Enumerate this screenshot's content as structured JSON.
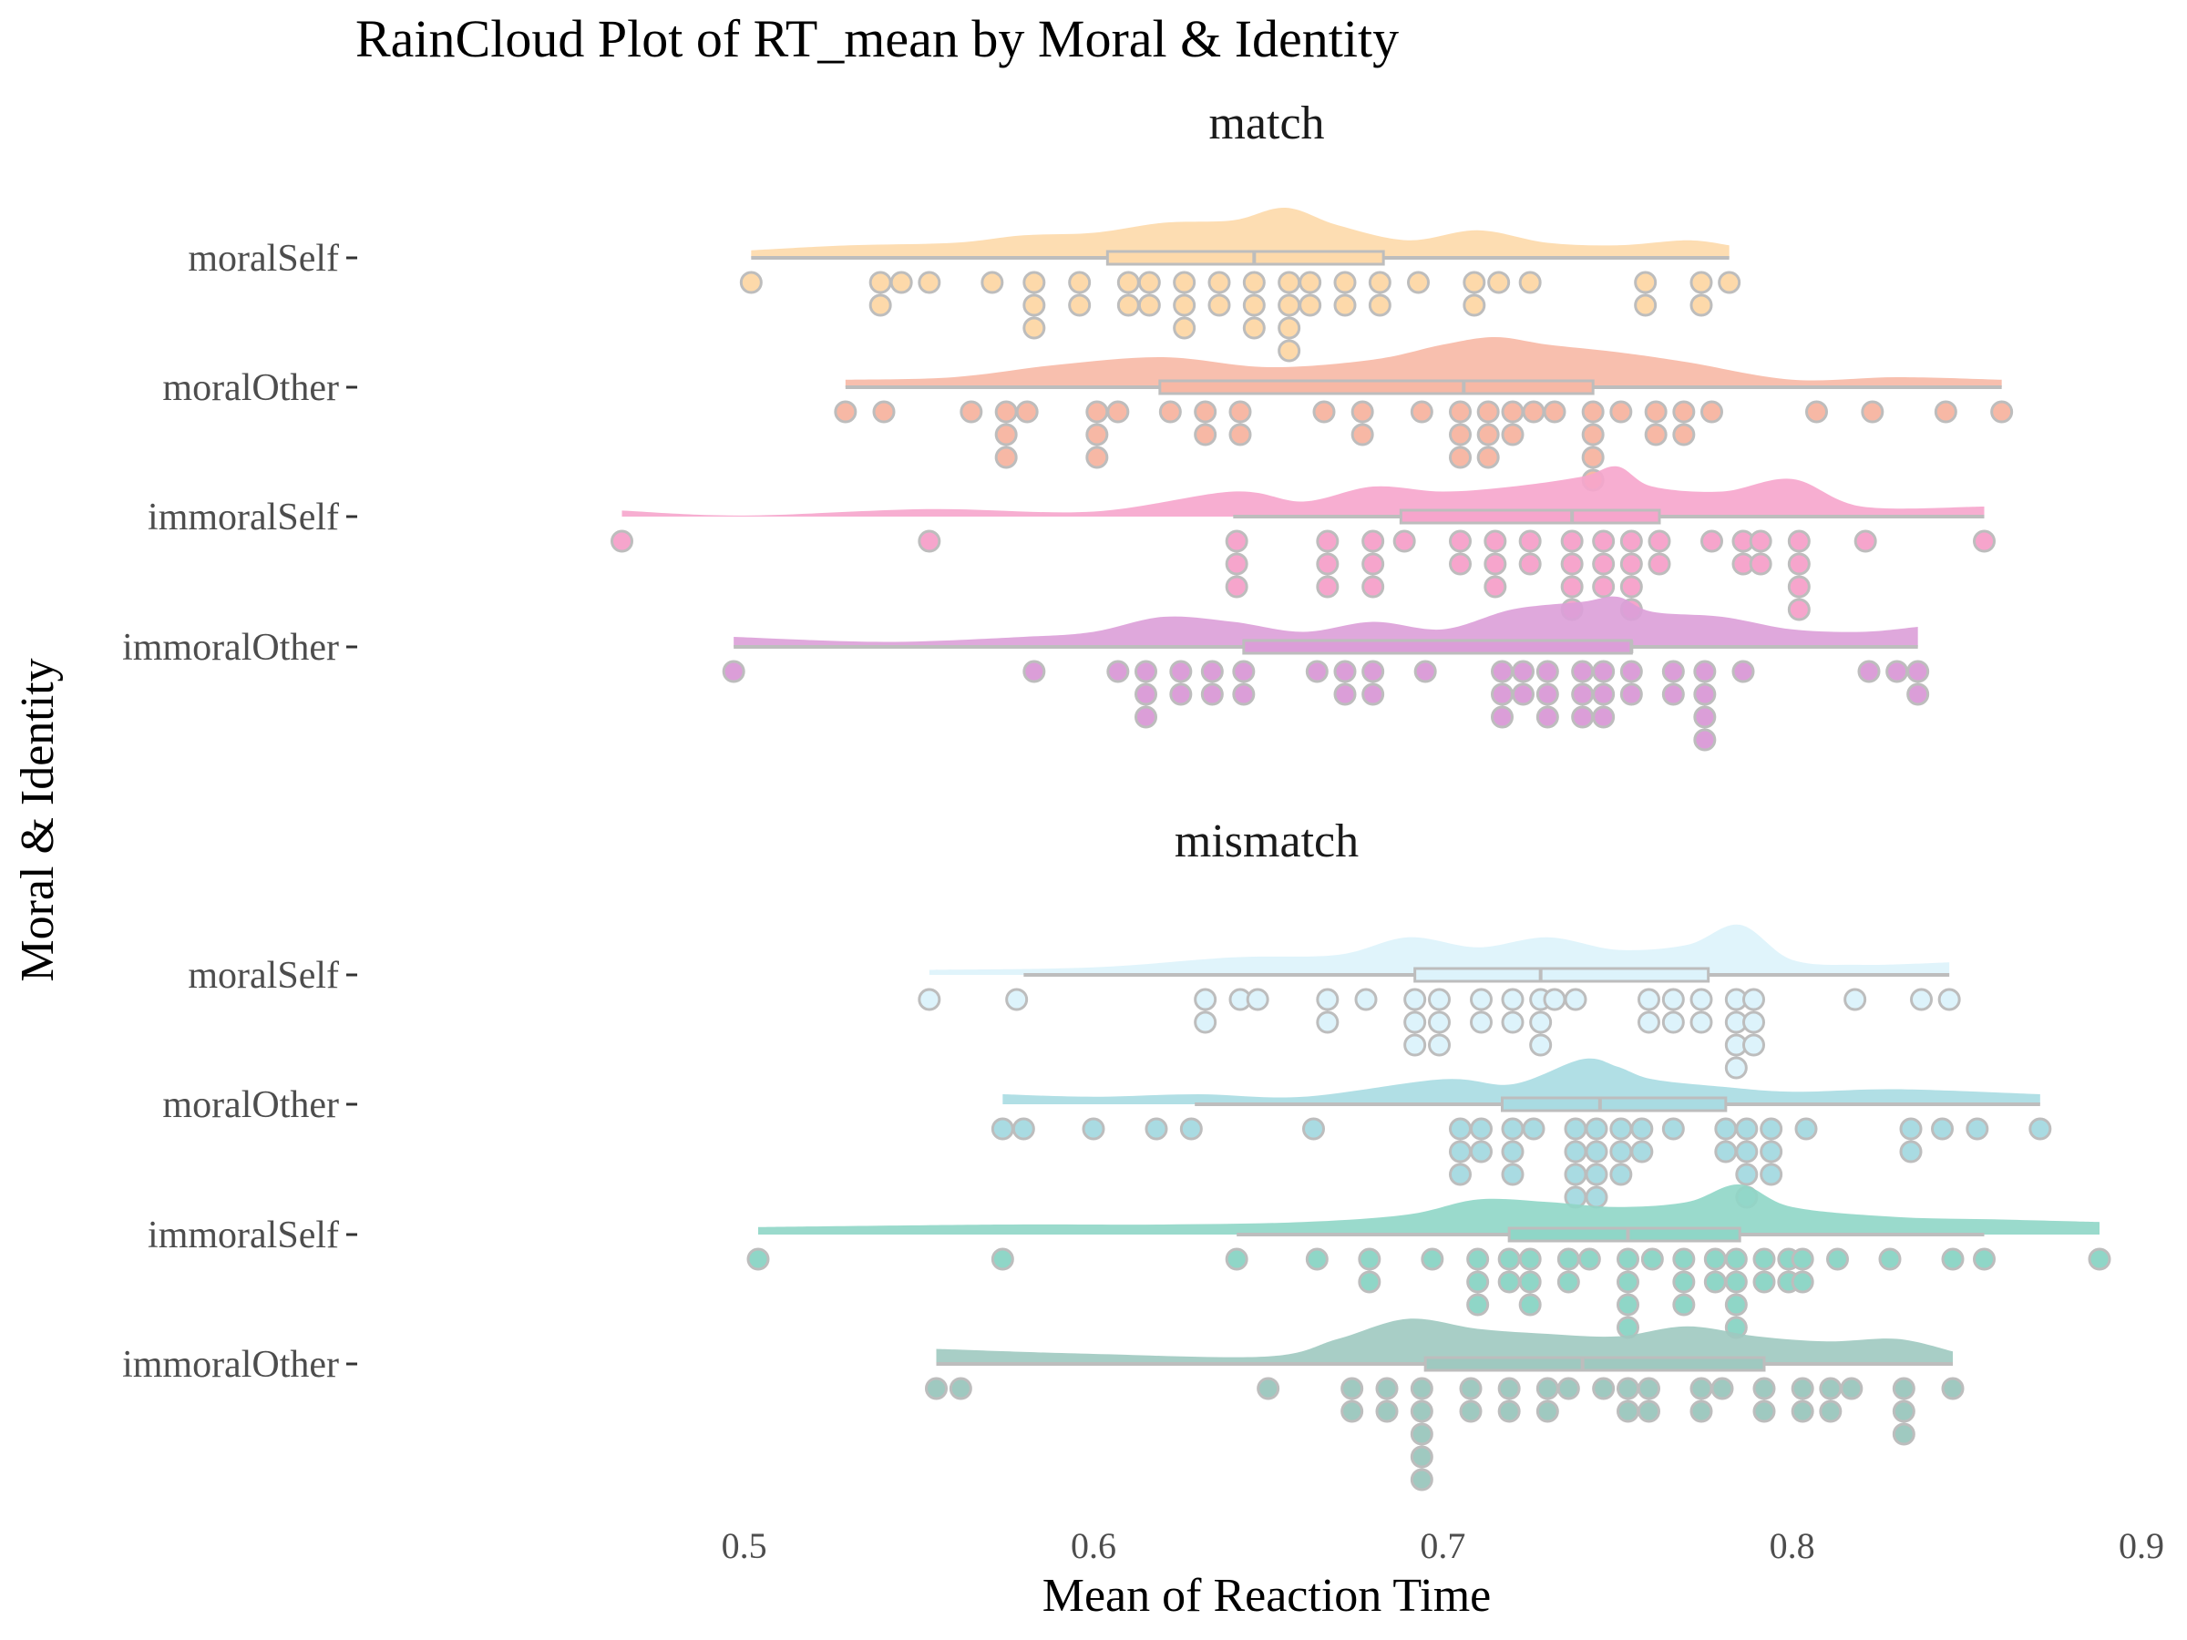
{
  "chart_data": {
    "type": "raincloud",
    "title": "RainCloud Plot of RT_mean by Moral & Identity",
    "xlabel": "Mean of Reaction Time",
    "ylabel": "Moral & Identity",
    "xlim": [
      0.45,
      0.9
    ],
    "x_ticks": [
      "0.5",
      "0.6",
      "0.7",
      "0.8",
      "0.9"
    ],
    "x_tick_values": [
      0.5,
      0.6,
      0.7,
      0.8,
      0.9
    ],
    "grid": false,
    "legend": "none",
    "facets": [
      {
        "name": "match",
        "groups": [
          {
            "name": "moralSelf",
            "color": "#FDD9AA",
            "box": {
              "min": 0.502,
              "q1": 0.604,
              "median": 0.646,
              "q3": 0.683,
              "max": 0.782
            },
            "values": [
              0.502,
              0.539,
              0.539,
              0.545,
              0.553,
              0.571,
              0.583,
              0.583,
              0.583,
              0.596,
              0.596,
              0.61,
              0.61,
              0.616,
              0.616,
              0.626,
              0.626,
              0.626,
              0.636,
              0.636,
              0.646,
              0.646,
              0.646,
              0.656,
              0.656,
              0.656,
              0.656,
              0.662,
              0.662,
              0.672,
              0.672,
              0.682,
              0.682,
              0.693,
              0.709,
              0.709,
              0.716,
              0.725,
              0.758,
              0.758,
              0.774,
              0.774,
              0.782
            ],
            "density": [
              [
                0.502,
                0.15
              ],
              [
                0.53,
                0.25
              ],
              [
                0.56,
                0.3
              ],
              [
                0.58,
                0.45
              ],
              [
                0.6,
                0.5
              ],
              [
                0.62,
                0.7
              ],
              [
                0.64,
                0.75
              ],
              [
                0.655,
                1.0
              ],
              [
                0.67,
                0.65
              ],
              [
                0.69,
                0.35
              ],
              [
                0.71,
                0.55
              ],
              [
                0.73,
                0.3
              ],
              [
                0.75,
                0.25
              ],
              [
                0.77,
                0.35
              ],
              [
                0.782,
                0.25
              ]
            ]
          },
          {
            "name": "moralOther",
            "color": "#F7B8A5",
            "box": {
              "min": 0.529,
              "q1": 0.619,
              "median": 0.706,
              "q3": 0.743,
              "max": 0.86
            },
            "values": [
              0.529,
              0.54,
              0.565,
              0.575,
              0.575,
              0.575,
              0.581,
              0.601,
              0.601,
              0.601,
              0.607,
              0.622,
              0.632,
              0.632,
              0.642,
              0.642,
              0.666,
              0.677,
              0.677,
              0.694,
              0.705,
              0.705,
              0.705,
              0.713,
              0.713,
              0.713,
              0.72,
              0.72,
              0.726,
              0.732,
              0.743,
              0.743,
              0.743,
              0.743,
              0.751,
              0.761,
              0.761,
              0.769,
              0.769,
              0.777,
              0.807,
              0.823,
              0.844,
              0.86
            ],
            "density": [
              [
                0.529,
                0.15
              ],
              [
                0.56,
                0.2
              ],
              [
                0.59,
                0.45
              ],
              [
                0.62,
                0.6
              ],
              [
                0.65,
                0.4
              ],
              [
                0.68,
                0.55
              ],
              [
                0.7,
                0.85
              ],
              [
                0.715,
                1.0
              ],
              [
                0.73,
                0.85
              ],
              [
                0.75,
                0.7
              ],
              [
                0.77,
                0.5
              ],
              [
                0.8,
                0.15
              ],
              [
                0.83,
                0.2
              ],
              [
                0.86,
                0.15
              ]
            ]
          },
          {
            "name": "immoralSelf",
            "color": "#F6A5CC",
            "box": {
              "min": 0.64,
              "q1": 0.688,
              "median": 0.737,
              "q3": 0.762,
              "max": 0.855
            },
            "values": [
              0.465,
              0.553,
              0.641,
              0.641,
              0.641,
              0.667,
              0.667,
              0.667,
              0.68,
              0.68,
              0.68,
              0.689,
              0.705,
              0.705,
              0.715,
              0.715,
              0.715,
              0.725,
              0.725,
              0.737,
              0.737,
              0.737,
              0.737,
              0.746,
              0.746,
              0.746,
              0.754,
              0.754,
              0.754,
              0.754,
              0.762,
              0.762,
              0.777,
              0.786,
              0.786,
              0.791,
              0.791,
              0.802,
              0.802,
              0.802,
              0.802,
              0.821,
              0.855
            ],
            "density": [
              [
                0.465,
                0.12
              ],
              [
                0.5,
                0.02
              ],
              [
                0.553,
                0.15
              ],
              [
                0.6,
                0.1
              ],
              [
                0.64,
                0.5
              ],
              [
                0.66,
                0.3
              ],
              [
                0.68,
                0.6
              ],
              [
                0.7,
                0.5
              ],
              [
                0.72,
                0.6
              ],
              [
                0.74,
                0.8
              ],
              [
                0.75,
                1.0
              ],
              [
                0.76,
                0.6
              ],
              [
                0.78,
                0.5
              ],
              [
                0.8,
                0.75
              ],
              [
                0.82,
                0.2
              ],
              [
                0.855,
                0.2
              ]
            ]
          },
          {
            "name": "immoralOther",
            "color": "#DB9ED8",
            "box": {
              "min": 0.497,
              "q1": 0.643,
              "median": 0.754,
              "q3": 0.754,
              "max": 0.836
            },
            "values": [
              0.497,
              0.583,
              0.607,
              0.615,
              0.615,
              0.615,
              0.625,
              0.625,
              0.634,
              0.634,
              0.643,
              0.643,
              0.664,
              0.672,
              0.672,
              0.68,
              0.68,
              0.695,
              0.717,
              0.717,
              0.717,
              0.723,
              0.723,
              0.73,
              0.73,
              0.73,
              0.74,
              0.74,
              0.74,
              0.746,
              0.746,
              0.746,
              0.754,
              0.754,
              0.766,
              0.766,
              0.775,
              0.775,
              0.775,
              0.775,
              0.786,
              0.822,
              0.83,
              0.836,
              0.836
            ],
            "density": [
              [
                0.497,
                0.2
              ],
              [
                0.54,
                0.1
              ],
              [
                0.58,
                0.2
              ],
              [
                0.6,
                0.3
              ],
              [
                0.62,
                0.6
              ],
              [
                0.64,
                0.5
              ],
              [
                0.66,
                0.3
              ],
              [
                0.68,
                0.5
              ],
              [
                0.7,
                0.35
              ],
              [
                0.72,
                0.75
              ],
              [
                0.74,
                0.9
              ],
              [
                0.75,
                1.0
              ],
              [
                0.76,
                0.7
              ],
              [
                0.78,
                0.6
              ],
              [
                0.8,
                0.35
              ],
              [
                0.82,
                0.3
              ],
              [
                0.836,
                0.4
              ]
            ]
          }
        ]
      },
      {
        "name": "mismatch",
        "groups": [
          {
            "name": "moralSelf",
            "color": "#DDF3FB",
            "box": {
              "min": 0.58,
              "q1": 0.692,
              "median": 0.728,
              "q3": 0.776,
              "max": 0.845
            },
            "values": [
              0.553,
              0.578,
              0.632,
              0.632,
              0.642,
              0.647,
              0.667,
              0.667,
              0.678,
              0.692,
              0.692,
              0.692,
              0.699,
              0.699,
              0.699,
              0.711,
              0.711,
              0.72,
              0.72,
              0.728,
              0.728,
              0.728,
              0.732,
              0.738,
              0.759,
              0.759,
              0.766,
              0.766,
              0.774,
              0.774,
              0.784,
              0.784,
              0.784,
              0.784,
              0.789,
              0.789,
              0.789,
              0.818,
              0.837,
              0.845
            ],
            "density": [
              [
                0.553,
                0.1
              ],
              [
                0.6,
                0.15
              ],
              [
                0.64,
                0.35
              ],
              [
                0.67,
                0.4
              ],
              [
                0.69,
                0.75
              ],
              [
                0.71,
                0.55
              ],
              [
                0.73,
                0.75
              ],
              [
                0.75,
                0.5
              ],
              [
                0.77,
                0.6
              ],
              [
                0.785,
                1.0
              ],
              [
                0.8,
                0.3
              ],
              [
                0.82,
                0.2
              ],
              [
                0.845,
                0.25
              ]
            ]
          },
          {
            "name": "moralOther",
            "color": "#A9DBE2",
            "box": {
              "min": 0.629,
              "q1": 0.717,
              "median": 0.745,
              "q3": 0.781,
              "max": 0.871
            },
            "values": [
              0.574,
              0.58,
              0.6,
              0.618,
              0.628,
              0.663,
              0.705,
              0.705,
              0.705,
              0.711,
              0.711,
              0.72,
              0.72,
              0.72,
              0.726,
              0.738,
              0.738,
              0.738,
              0.738,
              0.744,
              0.744,
              0.744,
              0.744,
              0.751,
              0.751,
              0.751,
              0.757,
              0.757,
              0.766,
              0.781,
              0.781,
              0.787,
              0.787,
              0.787,
              0.787,
              0.794,
              0.794,
              0.794,
              0.804,
              0.834,
              0.834,
              0.843,
              0.853,
              0.871
            ],
            "density": [
              [
                0.574,
                0.2
              ],
              [
                0.6,
                0.15
              ],
              [
                0.63,
                0.2
              ],
              [
                0.66,
                0.15
              ],
              [
                0.7,
                0.5
              ],
              [
                0.72,
                0.4
              ],
              [
                0.74,
                0.9
              ],
              [
                0.75,
                0.75
              ],
              [
                0.76,
                0.5
              ],
              [
                0.78,
                0.35
              ],
              [
                0.8,
                0.25
              ],
              [
                0.83,
                0.3
              ],
              [
                0.871,
                0.2
              ]
            ]
          },
          {
            "name": "immoralSelf",
            "color": "#8FD6C7",
            "box": {
              "min": 0.641,
              "q1": 0.719,
              "median": 0.753,
              "q3": 0.785,
              "max": 0.855
            },
            "values": [
              0.504,
              0.574,
              0.641,
              0.664,
              0.679,
              0.679,
              0.697,
              0.71,
              0.71,
              0.71,
              0.719,
              0.719,
              0.725,
              0.725,
              0.725,
              0.736,
              0.736,
              0.742,
              0.753,
              0.753,
              0.753,
              0.753,
              0.76,
              0.769,
              0.769,
              0.769,
              0.778,
              0.778,
              0.784,
              0.784,
              0.784,
              0.784,
              0.792,
              0.792,
              0.799,
              0.799,
              0.803,
              0.803,
              0.813,
              0.828,
              0.846,
              0.855,
              0.888
            ],
            "density": [
              [
                0.504,
                0.15
              ],
              [
                0.574,
                0.2
              ],
              [
                0.62,
                0.2
              ],
              [
                0.66,
                0.25
              ],
              [
                0.69,
                0.4
              ],
              [
                0.71,
                0.7
              ],
              [
                0.73,
                0.65
              ],
              [
                0.75,
                0.55
              ],
              [
                0.77,
                0.65
              ],
              [
                0.785,
                1.0
              ],
              [
                0.8,
                0.55
              ],
              [
                0.83,
                0.35
              ],
              [
                0.86,
                0.3
              ],
              [
                0.888,
                0.25
              ]
            ]
          },
          {
            "name": "immoralOther",
            "color": "#9FC9C0",
            "box": {
              "min": 0.555,
              "q1": 0.695,
              "median": 0.74,
              "q3": 0.792,
              "max": 0.846
            },
            "values": [
              0.555,
              0.562,
              0.65,
              0.674,
              0.674,
              0.684,
              0.684,
              0.694,
              0.694,
              0.694,
              0.694,
              0.694,
              0.708,
              0.708,
              0.719,
              0.719,
              0.73,
              0.73,
              0.736,
              0.746,
              0.753,
              0.753,
              0.759,
              0.759,
              0.774,
              0.774,
              0.78,
              0.792,
              0.792,
              0.803,
              0.803,
              0.811,
              0.811,
              0.817,
              0.832,
              0.832,
              0.832,
              0.846
            ],
            "density": [
              [
                0.555,
                0.3
              ],
              [
                0.6,
                0.2
              ],
              [
                0.65,
                0.15
              ],
              [
                0.67,
                0.5
              ],
              [
                0.69,
                0.9
              ],
              [
                0.71,
                0.7
              ],
              [
                0.73,
                0.6
              ],
              [
                0.75,
                0.55
              ],
              [
                0.77,
                0.75
              ],
              [
                0.79,
                0.55
              ],
              [
                0.81,
                0.45
              ],
              [
                0.83,
                0.5
              ],
              [
                0.846,
                0.25
              ]
            ]
          }
        ]
      }
    ]
  }
}
